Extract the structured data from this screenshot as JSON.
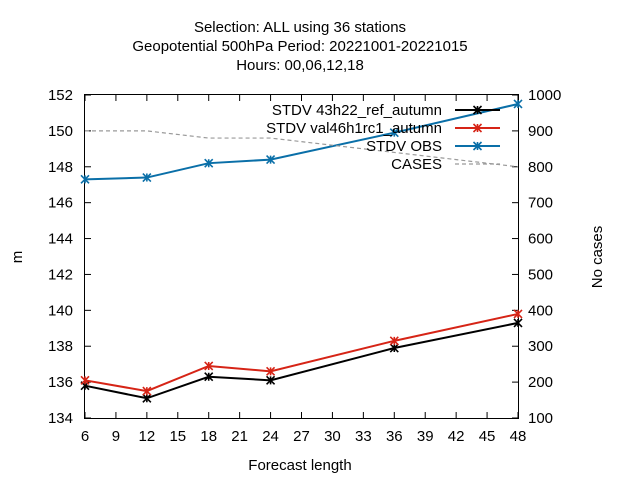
{
  "chart_data": {
    "type": "line",
    "title_lines": [
      "Selection: ALL using    36 stations",
      "Geopotential 500hPa   Period: 20221001-20221015",
      "Hours:  00,06,12,18"
    ],
    "xlabel": "Forecast length",
    "ylabel": "m",
    "y2label": "No cases",
    "xlim": [
      6,
      48
    ],
    "ylim": [
      134,
      152
    ],
    "y2lim": [
      100,
      1000
    ],
    "x_ticks": [
      6,
      9,
      12,
      15,
      18,
      21,
      24,
      27,
      30,
      33,
      36,
      39,
      42,
      45,
      48
    ],
    "y_ticks": [
      134,
      136,
      138,
      140,
      142,
      144,
      146,
      148,
      150,
      152
    ],
    "y2_ticks": [
      100,
      200,
      300,
      400,
      500,
      600,
      700,
      800,
      900,
      1000
    ],
    "grid": false,
    "legend_position": "top-right",
    "x": [
      6,
      12,
      18,
      24,
      36,
      48
    ],
    "series": [
      {
        "name": "STDV 43h22_ref_autumn",
        "color": "#000000",
        "style": "solid",
        "marker": "x",
        "axis": "y",
        "values": [
          135.8,
          135.1,
          136.3,
          136.1,
          137.9,
          139.3
        ]
      },
      {
        "name": "STDV val46h1rc1_autumn",
        "color": "#d62416",
        "style": "solid",
        "marker": "x",
        "axis": "y",
        "values": [
          136.1,
          135.5,
          136.9,
          136.6,
          138.3,
          139.8
        ]
      },
      {
        "name": "STDV OBS",
        "color": "#0a6fa8",
        "style": "solid",
        "marker": "x",
        "axis": "y",
        "values": [
          147.3,
          147.4,
          148.2,
          148.4,
          149.9,
          151.5
        ]
      },
      {
        "name": "CASES",
        "color": "#9a9a9a",
        "style": "dashed",
        "marker": "none",
        "axis": "y2",
        "values": [
          900,
          900,
          880,
          880,
          840,
          800
        ]
      }
    ]
  }
}
